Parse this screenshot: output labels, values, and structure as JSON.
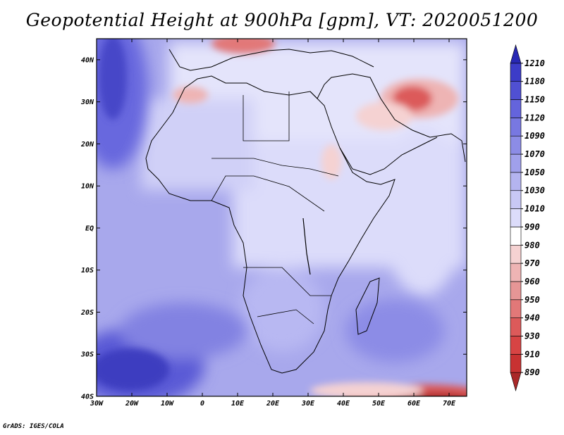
{
  "title": "Geopotential Height at 900hPa [gpm], VT: 2020051200",
  "credit": "GrADS: IGES/COLA",
  "map": {
    "lon_range": [
      -30,
      75
    ],
    "lat_range": [
      -40,
      45
    ],
    "lat_ticks": [
      {
        "value": 40,
        "label": "40N"
      },
      {
        "value": 30,
        "label": "30N"
      },
      {
        "value": 20,
        "label": "20N"
      },
      {
        "value": 10,
        "label": "10N"
      },
      {
        "value": 0,
        "label": "EQ"
      },
      {
        "value": -10,
        "label": "10S"
      },
      {
        "value": -20,
        "label": "20S"
      },
      {
        "value": -30,
        "label": "30S"
      },
      {
        "value": -40,
        "label": "40S"
      }
    ],
    "lon_ticks": [
      {
        "value": -30,
        "label": "30W"
      },
      {
        "value": -20,
        "label": "20W"
      },
      {
        "value": -10,
        "label": "10W"
      },
      {
        "value": 0,
        "label": "0"
      },
      {
        "value": 10,
        "label": "10E"
      },
      {
        "value": 20,
        "label": "20E"
      },
      {
        "value": 30,
        "label": "30E"
      },
      {
        "value": 40,
        "label": "40E"
      },
      {
        "value": 50,
        "label": "50E"
      },
      {
        "value": 60,
        "label": "60E"
      },
      {
        "value": 70,
        "label": "70E"
      }
    ]
  },
  "colorbar": {
    "colors": [
      "#aa2828",
      "#c83232",
      "#d74444",
      "#dc5a5a",
      "#e27878",
      "#e69696",
      "#eeb4b4",
      "#f5d2d2",
      "#ffffff",
      "#dcdcfa",
      "#c8c8f5",
      "#b4b4f0",
      "#a0a0eb",
      "#8c8ce6",
      "#7878e1",
      "#6464dc",
      "#5050d2",
      "#3c3cc8",
      "#2828b4"
    ],
    "labels": [
      "890",
      "910",
      "930",
      "940",
      "950",
      "960",
      "970",
      "980",
      "990",
      "1010",
      "1030",
      "1050",
      "1070",
      "1090",
      "1120",
      "1150",
      "1180",
      "1210"
    ]
  }
}
